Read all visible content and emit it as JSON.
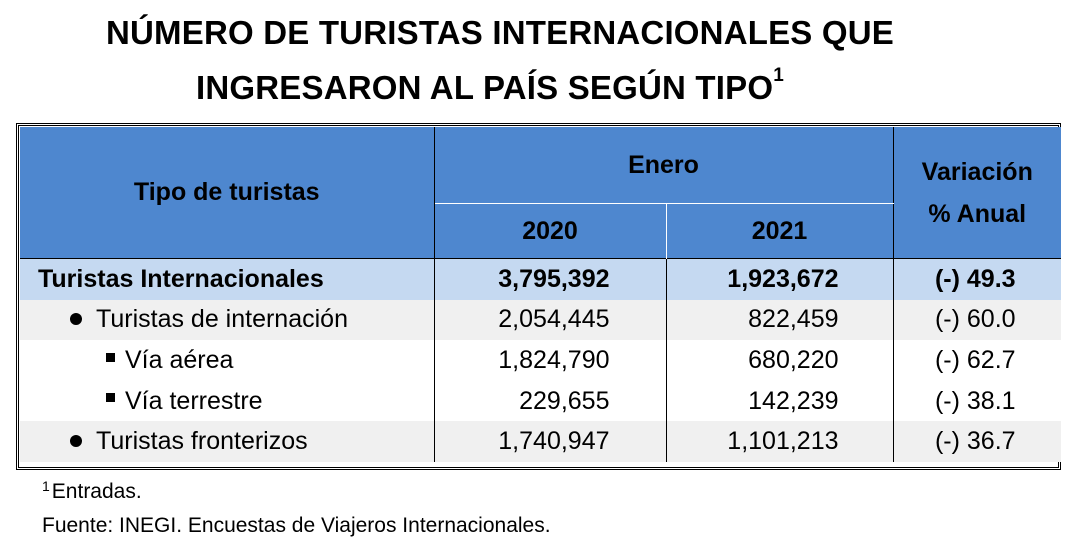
{
  "title": {
    "line1": "NÚMERO DE TURISTAS INTERNACIONALES QUE",
    "line2": "INGRESARON AL PAÍS SEGÚN TIPO",
    "superscript": "1"
  },
  "table": {
    "header": {
      "tipo": "Tipo de turistas",
      "period": "Enero",
      "year1": "2020",
      "year2": "2021",
      "variation_line1": "Variación",
      "variation_line2": "% Anual"
    },
    "rows": [
      {
        "label": "Turistas Internacionales",
        "v2020": "3,795,392",
        "v2021": "1,923,672",
        "variation": "(-) 49.3"
      },
      {
        "label": "Turistas de internación",
        "v2020": "2,054,445",
        "v2021": "822,459",
        "variation": "(-) 60.0"
      },
      {
        "label": "Vía aérea",
        "v2020": "1,824,790",
        "v2021": "680,220",
        "variation": "(-) 62.7"
      },
      {
        "label": "Vía terrestre",
        "v2020": "229,655",
        "v2021": "142,239",
        "variation": "(-) 38.1"
      },
      {
        "label": "Turistas fronterizos",
        "v2020": "1,740,947",
        "v2021": "1,101,213",
        "variation": "(-) 36.7"
      }
    ]
  },
  "footnotes": {
    "note_mark": "1",
    "note_text": "Entradas.",
    "source": "Fuente: INEGI. Encuestas de Viajeros Internacionales."
  },
  "colors": {
    "header_bg": "#4e87cf",
    "total_row_bg": "#c5d9f1",
    "alt_row_bg": "#f0f0f0"
  },
  "icons": {
    "level1_marker": "bullet-icon",
    "level2_marker": "square-bullet-icon"
  }
}
